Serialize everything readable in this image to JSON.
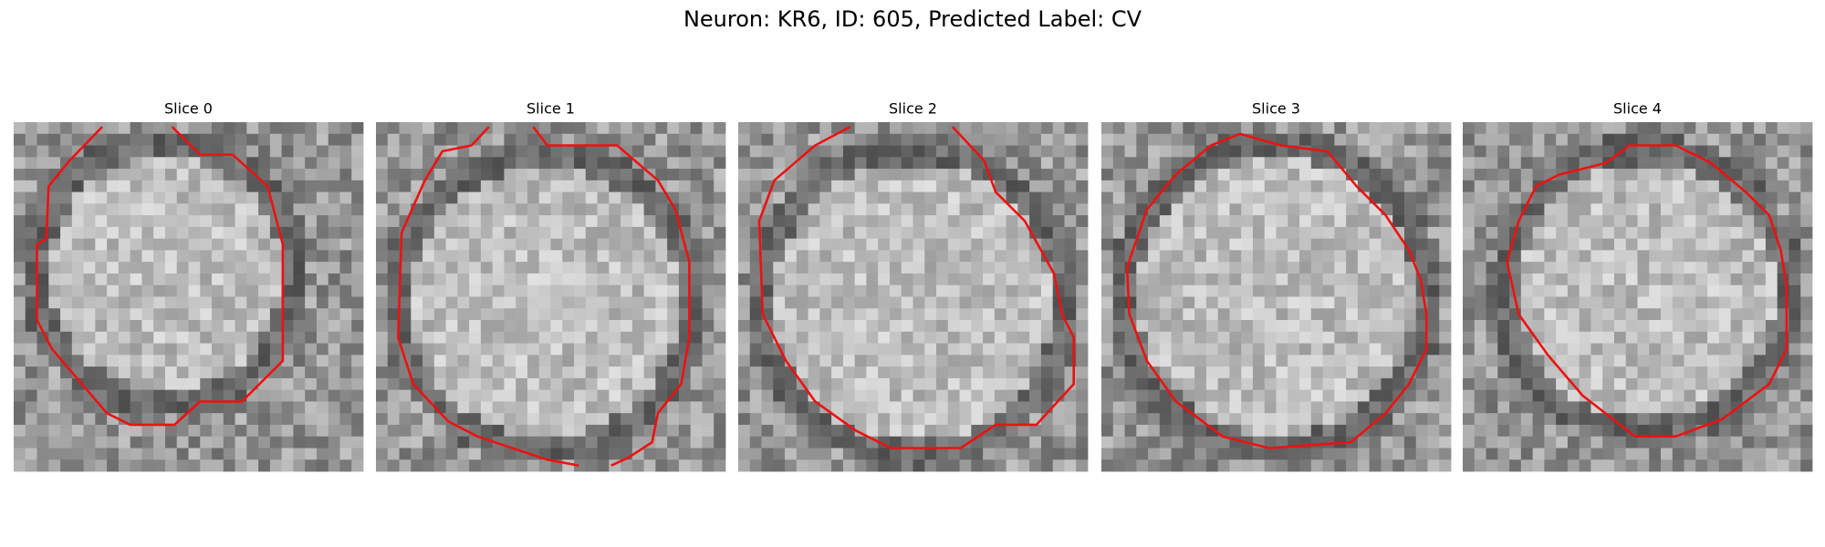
{
  "title": "Neuron: KR6, ID: 605, Predicted Label: CV",
  "panels": [
    {
      "title": "Slice 0"
    },
    {
      "title": "Slice 1"
    },
    {
      "title": "Slice 2"
    },
    {
      "title": "Slice 3"
    },
    {
      "title": "Slice 4"
    }
  ]
}
